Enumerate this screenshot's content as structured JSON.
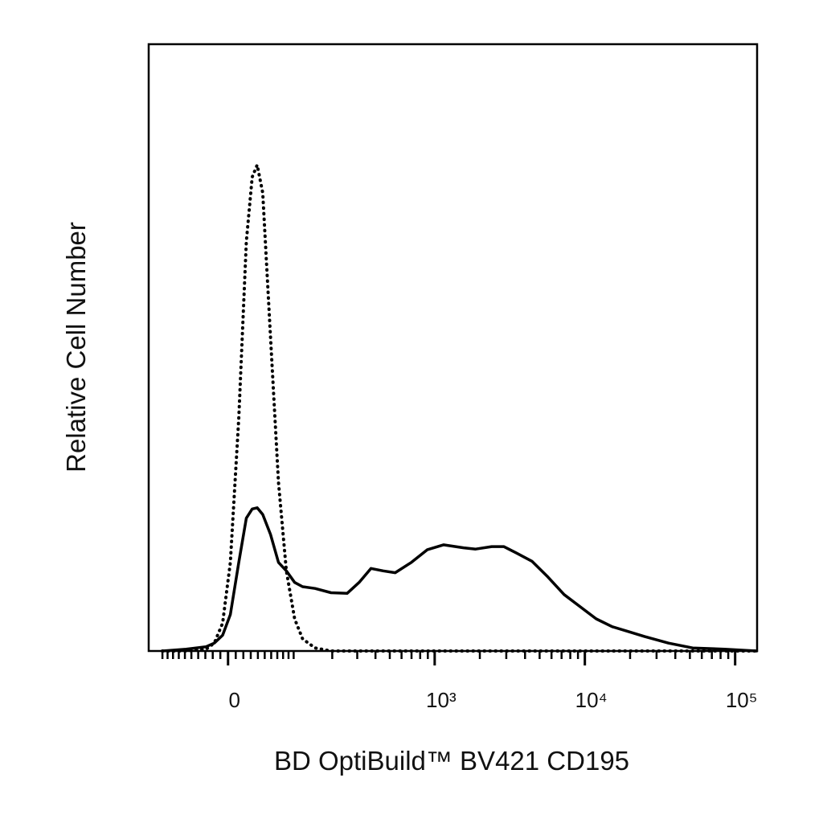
{
  "chart_data": {
    "type": "line",
    "xlabel": "BD OptiBuild™ BV421 CD195",
    "ylabel": "Relative Cell Number",
    "xscale": "biexponential",
    "x": [
      -100,
      -58,
      -29,
      -18,
      -7,
      3,
      14,
      24,
      32,
      39,
      47,
      59,
      72,
      86,
      102,
      119,
      149,
      196,
      255,
      309,
      373,
      451,
      544,
      698,
      894,
      1145,
      1377,
      1558,
      1875,
      2399,
      2886,
      3473,
      4445,
      5678,
      7275,
      9295,
      11898,
      15218,
      19460,
      24894,
      36022,
      52120,
      85260,
      139000
    ],
    "series": [
      {
        "color": "#000000",
        "style": "solid",
        "values": [
          0,
          0.3,
          0.7,
          1.3,
          2.6,
          6.0,
          14.6,
          21.9,
          23.4,
          23.6,
          22.5,
          19.2,
          14.6,
          13.2,
          11.3,
          10.6,
          10.3,
          9.6,
          9.5,
          11.3,
          13.6,
          13.2,
          12.9,
          14.6,
          16.7,
          17.5,
          17.2,
          17.0,
          16.8,
          17.2,
          17.2,
          16.2,
          14.8,
          12.2,
          9.3,
          7.3,
          5.3,
          4.0,
          3.2,
          2.4,
          1.3,
          0.5,
          0.3,
          0
        ]
      },
      {
        "color": "#000000",
        "style": "dotted",
        "values": [
          0,
          0,
          0.3,
          1.3,
          4.6,
          14.6,
          38.4,
          67.5,
          78.1,
          80.1,
          75.5,
          51.7,
          27.8,
          13.2,
          5.3,
          2.0,
          0.5,
          0,
          0,
          0,
          0,
          0,
          0,
          0,
          0,
          0,
          0,
          0,
          0,
          0,
          0,
          0,
          0,
          0,
          0,
          0,
          0,
          0,
          0,
          0,
          0,
          0,
          0,
          0
        ]
      }
    ],
    "xlim": [
      -130,
      140000
    ],
    "ylim": [
      0,
      100
    ],
    "xticks": [
      0,
      {
        "value": 1000,
        "label": "10³"
      },
      {
        "value": 10000,
        "label": "10⁴"
      },
      {
        "value": 100000,
        "label": "10⁵"
      }
    ],
    "xminorticks": [
      -100,
      -90,
      -80,
      -70,
      -60,
      -50,
      -40,
      -30,
      -20,
      -10,
      10,
      20,
      30,
      40,
      50,
      60,
      70,
      80,
      90,
      100,
      200,
      300,
      400,
      500,
      600,
      700,
      800,
      900,
      2000,
      3000,
      4000,
      5000,
      6000,
      7000,
      8000,
      9000,
      20000,
      30000,
      40000,
      50000,
      60000,
      70000,
      80000,
      90000
    ]
  }
}
